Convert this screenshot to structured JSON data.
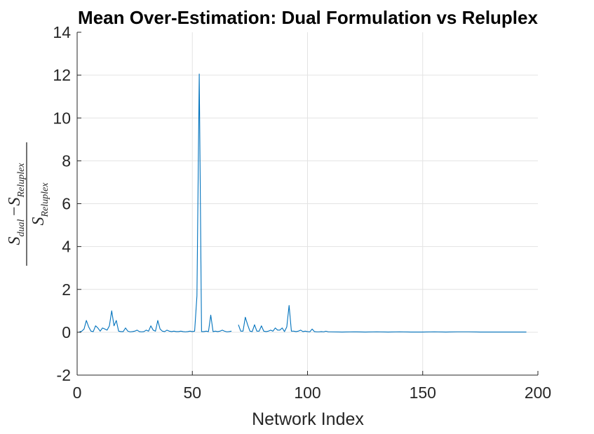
{
  "chart_data": {
    "type": "line",
    "title": "Mean Over-Estimation: Dual Formulation vs Reluplex",
    "xlabel": "Network Index",
    "ylabel": {
      "numerator": {
        "a": "S",
        "a_sub": "dual",
        "op": "−",
        "b": "S",
        "b_sub": "Reluplex"
      },
      "denominator": {
        "a": "S",
        "a_sub": "Reluplex"
      }
    },
    "xlim": [
      0,
      200
    ],
    "ylim": [
      -2,
      14
    ],
    "xticks": [
      0,
      50,
      100,
      150,
      200
    ],
    "yticks": [
      -2,
      0,
      2,
      4,
      6,
      8,
      10,
      12,
      14
    ],
    "grid": true,
    "line_color": "#0072BD",
    "series": [
      {
        "segments": [
          {
            "x": [
              1,
              2,
              3,
              4,
              5,
              6,
              7,
              8,
              9,
              10,
              11,
              12,
              13,
              14,
              15,
              16,
              17,
              18,
              19,
              20,
              21,
              22,
              23,
              24,
              25,
              26,
              27,
              28,
              29,
              30,
              31,
              32,
              33,
              34,
              35,
              36,
              37,
              38,
              39,
              40,
              41,
              42,
              43,
              44,
              45,
              46,
              47,
              48,
              49,
              50,
              51,
              52,
              53,
              54,
              55,
              56,
              57,
              58,
              59,
              60,
              61,
              62,
              63,
              64,
              65,
              66,
              67
            ],
            "y": [
              0.02,
              0.05,
              0.15,
              0.55,
              0.25,
              0.05,
              0.03,
              0.3,
              0.2,
              0.05,
              0.2,
              0.15,
              0.1,
              0.3,
              1.0,
              0.3,
              0.55,
              0.05,
              0.03,
              0.03,
              0.2,
              0.05,
              0.02,
              0.03,
              0.05,
              0.1,
              0.03,
              0.02,
              0.03,
              0.1,
              0.05,
              0.3,
              0.1,
              0.05,
              0.55,
              0.15,
              0.05,
              0.03,
              0.1,
              0.05,
              0.03,
              0.05,
              0.03,
              0.03,
              0.05,
              0.03,
              0.02,
              0.03,
              0.05,
              0.03,
              0.05,
              1.7,
              12.05,
              0.03,
              0.03,
              0.05,
              0.03,
              0.8,
              0.03,
              0.05,
              0.03,
              0.05,
              0.1,
              0.05,
              0.02,
              0.03,
              0.05
            ]
          },
          {
            "x": [
              70,
              71,
              72,
              73,
              74,
              75,
              76,
              77,
              78,
              79,
              80,
              81,
              82,
              83,
              84,
              85,
              86,
              87,
              88,
              89,
              90,
              91,
              92,
              93,
              94,
              95,
              96,
              97,
              98,
              99,
              100,
              101,
              102,
              103,
              104,
              105,
              106,
              107,
              108,
              109,
              110,
              115,
              120,
              125,
              130,
              135,
              140,
              145,
              150,
              155,
              160,
              165,
              170,
              175,
              180,
              185,
              190,
              195
            ],
            "y": [
              0.35,
              0.05,
              0.05,
              0.7,
              0.35,
              0.05,
              0.03,
              0.35,
              0.05,
              0.05,
              0.3,
              0.05,
              0.03,
              0.05,
              0.1,
              0.05,
              0.2,
              0.1,
              0.1,
              0.2,
              0.03,
              0.25,
              1.25,
              0.05,
              0.05,
              0.03,
              0.05,
              0.1,
              0.03,
              0.05,
              0.03,
              0.02,
              0.15,
              0.03,
              0.02,
              0.02,
              0.03,
              0.02,
              0.05,
              0.02,
              0.02,
              0.01,
              0.02,
              0.01,
              0.02,
              0.01,
              0.02,
              0.01,
              0.01,
              0.02,
              0.01,
              0.02,
              0.02,
              0.01,
              0.01,
              0.01,
              0.01,
              0.01
            ]
          }
        ]
      }
    ]
  }
}
